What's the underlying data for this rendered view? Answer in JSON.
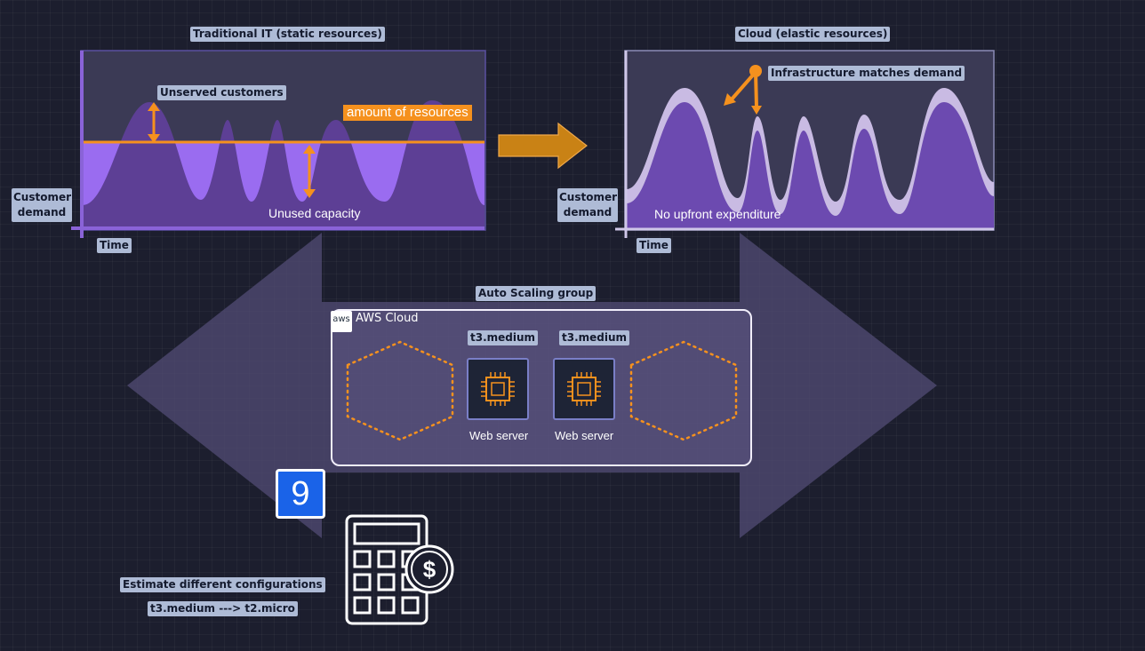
{
  "traditional": {
    "title": "Traditional IT (static resources)",
    "unserved_label": "Unserved customers",
    "resources_label": "amount of resources",
    "unused_label": "Unused capacity",
    "ylabel": "Customer\ndemand",
    "xlabel": "Time"
  },
  "cloud": {
    "title": "Cloud (elastic resources)",
    "match_label": "Infrastructure matches demand",
    "upfront_label": "No upfront expenditure",
    "ylabel": "Customer\ndemand",
    "xlabel": "Time"
  },
  "asg": {
    "title": "Auto Scaling group",
    "cloud_label": "AWS Cloud",
    "aws_logo_text": "aws",
    "instances": [
      {
        "type": "t3.medium",
        "role": "Web server"
      },
      {
        "type": "t3.medium",
        "role": "Web server"
      }
    ]
  },
  "step_badge": "9",
  "estimate": {
    "title": "Estimate different configurations",
    "change": "t3.medium ---> t2.micro"
  },
  "colors": {
    "background": "#1c1e2e",
    "purple_fill": "#6c4ab0",
    "orange": "#f5911e",
    "tag_bg": "#aebbd6",
    "badge_blue": "#1a63e8"
  },
  "icons": [
    "arrow-right-icon",
    "double-arrow-icon",
    "aws-logo-icon",
    "cpu-chip-icon",
    "calculator-dollar-icon"
  ]
}
